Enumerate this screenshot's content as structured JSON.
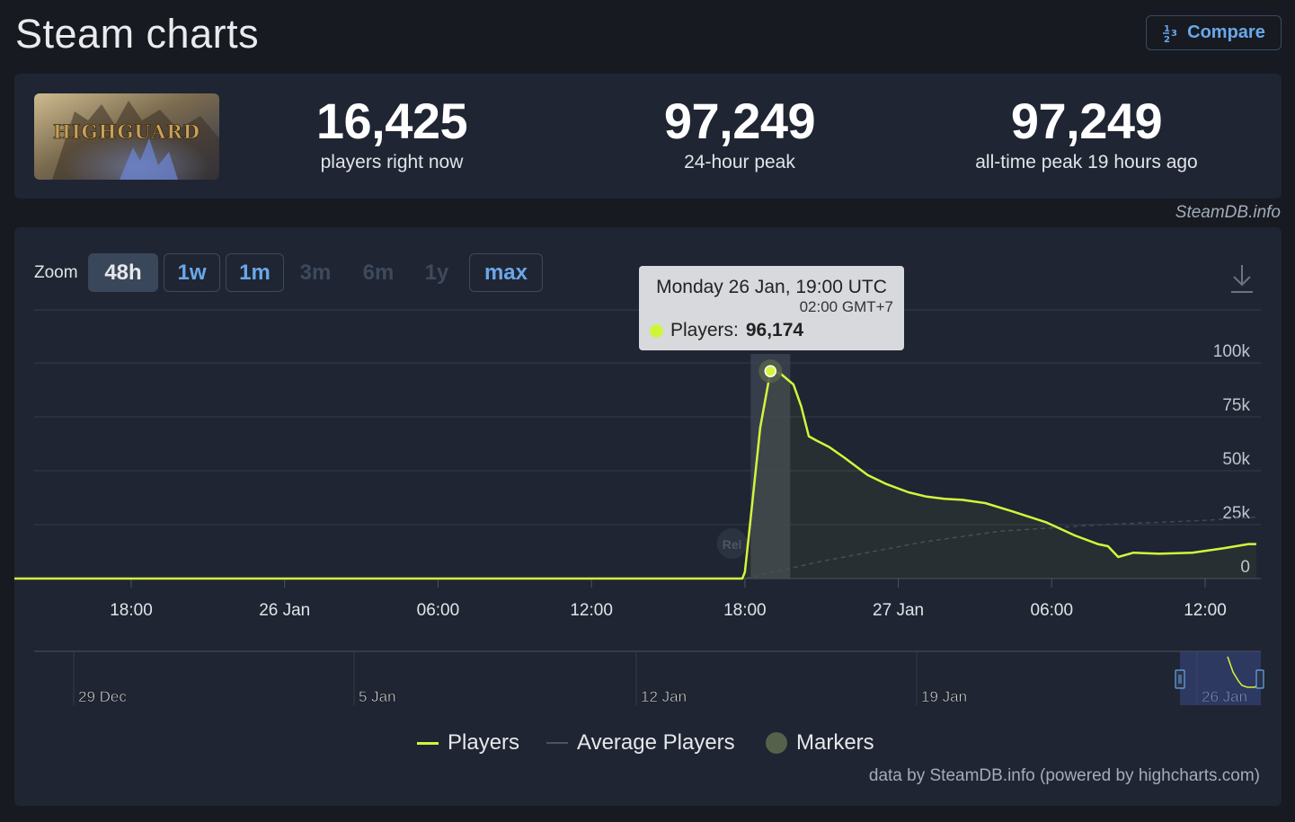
{
  "page": {
    "title": "Steam charts",
    "compare_label": "Compare"
  },
  "stats": {
    "game_name": "HIGHGUARD",
    "players_now": {
      "value": "16,425",
      "label": "players right now"
    },
    "peak_24h": {
      "value": "97,249",
      "label": "24-hour peak"
    },
    "all_time_peak": {
      "value": "97,249",
      "label": "all-time peak 19 hours ago"
    }
  },
  "credit_top": "SteamDB.info",
  "zoom": {
    "label": "Zoom",
    "options": [
      {
        "label": "48h",
        "state": "active"
      },
      {
        "label": "1w",
        "state": "enabled"
      },
      {
        "label": "1m",
        "state": "enabled"
      },
      {
        "label": "3m",
        "state": "disabled"
      },
      {
        "label": "6m",
        "state": "disabled"
      },
      {
        "label": "1y",
        "state": "disabled"
      },
      {
        "label": "max",
        "state": "enabled"
      }
    ]
  },
  "tooltip": {
    "title": "Monday 26 Jan, 19:00 UTC",
    "local_time": "02:00 GMT+7",
    "series_label": "Players: ",
    "value": "96,174"
  },
  "legend": {
    "players": "Players",
    "average": "Average Players",
    "markers": "Markers"
  },
  "credit_bottom": "data by SteamDB.info (powered by highcharts.com)",
  "colors": {
    "players": "#d4f53c",
    "average": "#3f4755",
    "marker": "#55614a",
    "link": "#6aa7ea"
  },
  "chart_data": {
    "type": "line",
    "x_unit": "hours since 25 Jan 12:00 UTC",
    "x_range": [
      0,
      48
    ],
    "ylim": [
      0,
      125000
    ],
    "yticks": [
      0,
      25000,
      50000,
      75000,
      100000
    ],
    "ytick_labels": [
      "0",
      "25k",
      "50k",
      "75k",
      "100k"
    ],
    "xtick_positions": [
      6,
      12,
      18,
      24,
      30,
      36,
      42,
      48
    ],
    "xtick_labels": [
      "18:00",
      "26 Jan",
      "06:00",
      "12:00",
      "18:00",
      "27 Jan",
      "06:00",
      "12:00"
    ],
    "marker": {
      "x": 29.5,
      "label": "Rel"
    },
    "highlight": {
      "x": 31,
      "y": 96174
    },
    "series": [
      {
        "name": "Players",
        "points": [
          [
            0,
            0
          ],
          [
            29.9,
            0
          ],
          [
            30,
            3000
          ],
          [
            30.2,
            25000
          ],
          [
            30.6,
            70000
          ],
          [
            31,
            96174
          ],
          [
            31.4,
            95000
          ],
          [
            31.9,
            90000
          ],
          [
            32.2,
            80000
          ],
          [
            32.5,
            66000
          ],
          [
            32.8,
            64000
          ],
          [
            33.3,
            61000
          ],
          [
            33.9,
            56000
          ],
          [
            34.8,
            48000
          ],
          [
            35.5,
            44000
          ],
          [
            36.4,
            40000
          ],
          [
            37.1,
            38000
          ],
          [
            37.8,
            37000
          ],
          [
            38.5,
            36500
          ],
          [
            39.4,
            35000
          ],
          [
            40.5,
            31000
          ],
          [
            41.8,
            26000
          ],
          [
            42.9,
            20000
          ],
          [
            43.8,
            16000
          ],
          [
            44.2,
            15000
          ],
          [
            44.6,
            10000
          ],
          [
            45.2,
            12000
          ],
          [
            46.2,
            11500
          ],
          [
            47.5,
            12000
          ],
          [
            48.7,
            14000
          ],
          [
            49.7,
            16000
          ],
          [
            50,
            16000
          ]
        ]
      },
      {
        "name": "Average Players",
        "points": [
          [
            0,
            0
          ],
          [
            30,
            0
          ],
          [
            33,
            8000
          ],
          [
            37,
            17000
          ],
          [
            40,
            22000
          ],
          [
            44,
            25000
          ],
          [
            48,
            27000
          ],
          [
            50,
            28500
          ]
        ]
      }
    ],
    "navigator": {
      "xtick_labels": [
        "29 Dec",
        "5 Jan",
        "12 Jan",
        "19 Jan",
        "26 Jan"
      ]
    }
  }
}
